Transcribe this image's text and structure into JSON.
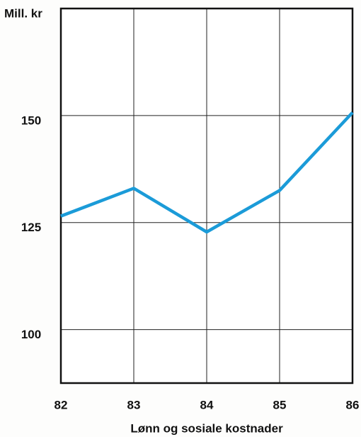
{
  "chart_data": {
    "type": "line",
    "y_label": "Mill. kr",
    "x_label": "Lønn og sosiale kostnader",
    "x": [
      82,
      83,
      84,
      85,
      86
    ],
    "series": [
      {
        "name": "Lønn og sosiale kostnader",
        "color": "#1b9bd8",
        "values": [
          126.5,
          133,
          122.8,
          132.5,
          150.7
        ]
      }
    ],
    "xlim": [
      82,
      86
    ],
    "xticks": [
      82,
      83,
      84,
      85,
      86
    ],
    "ylim": [
      87.5,
      175
    ],
    "yticks": [
      100,
      125,
      150
    ],
    "grid": true
  }
}
